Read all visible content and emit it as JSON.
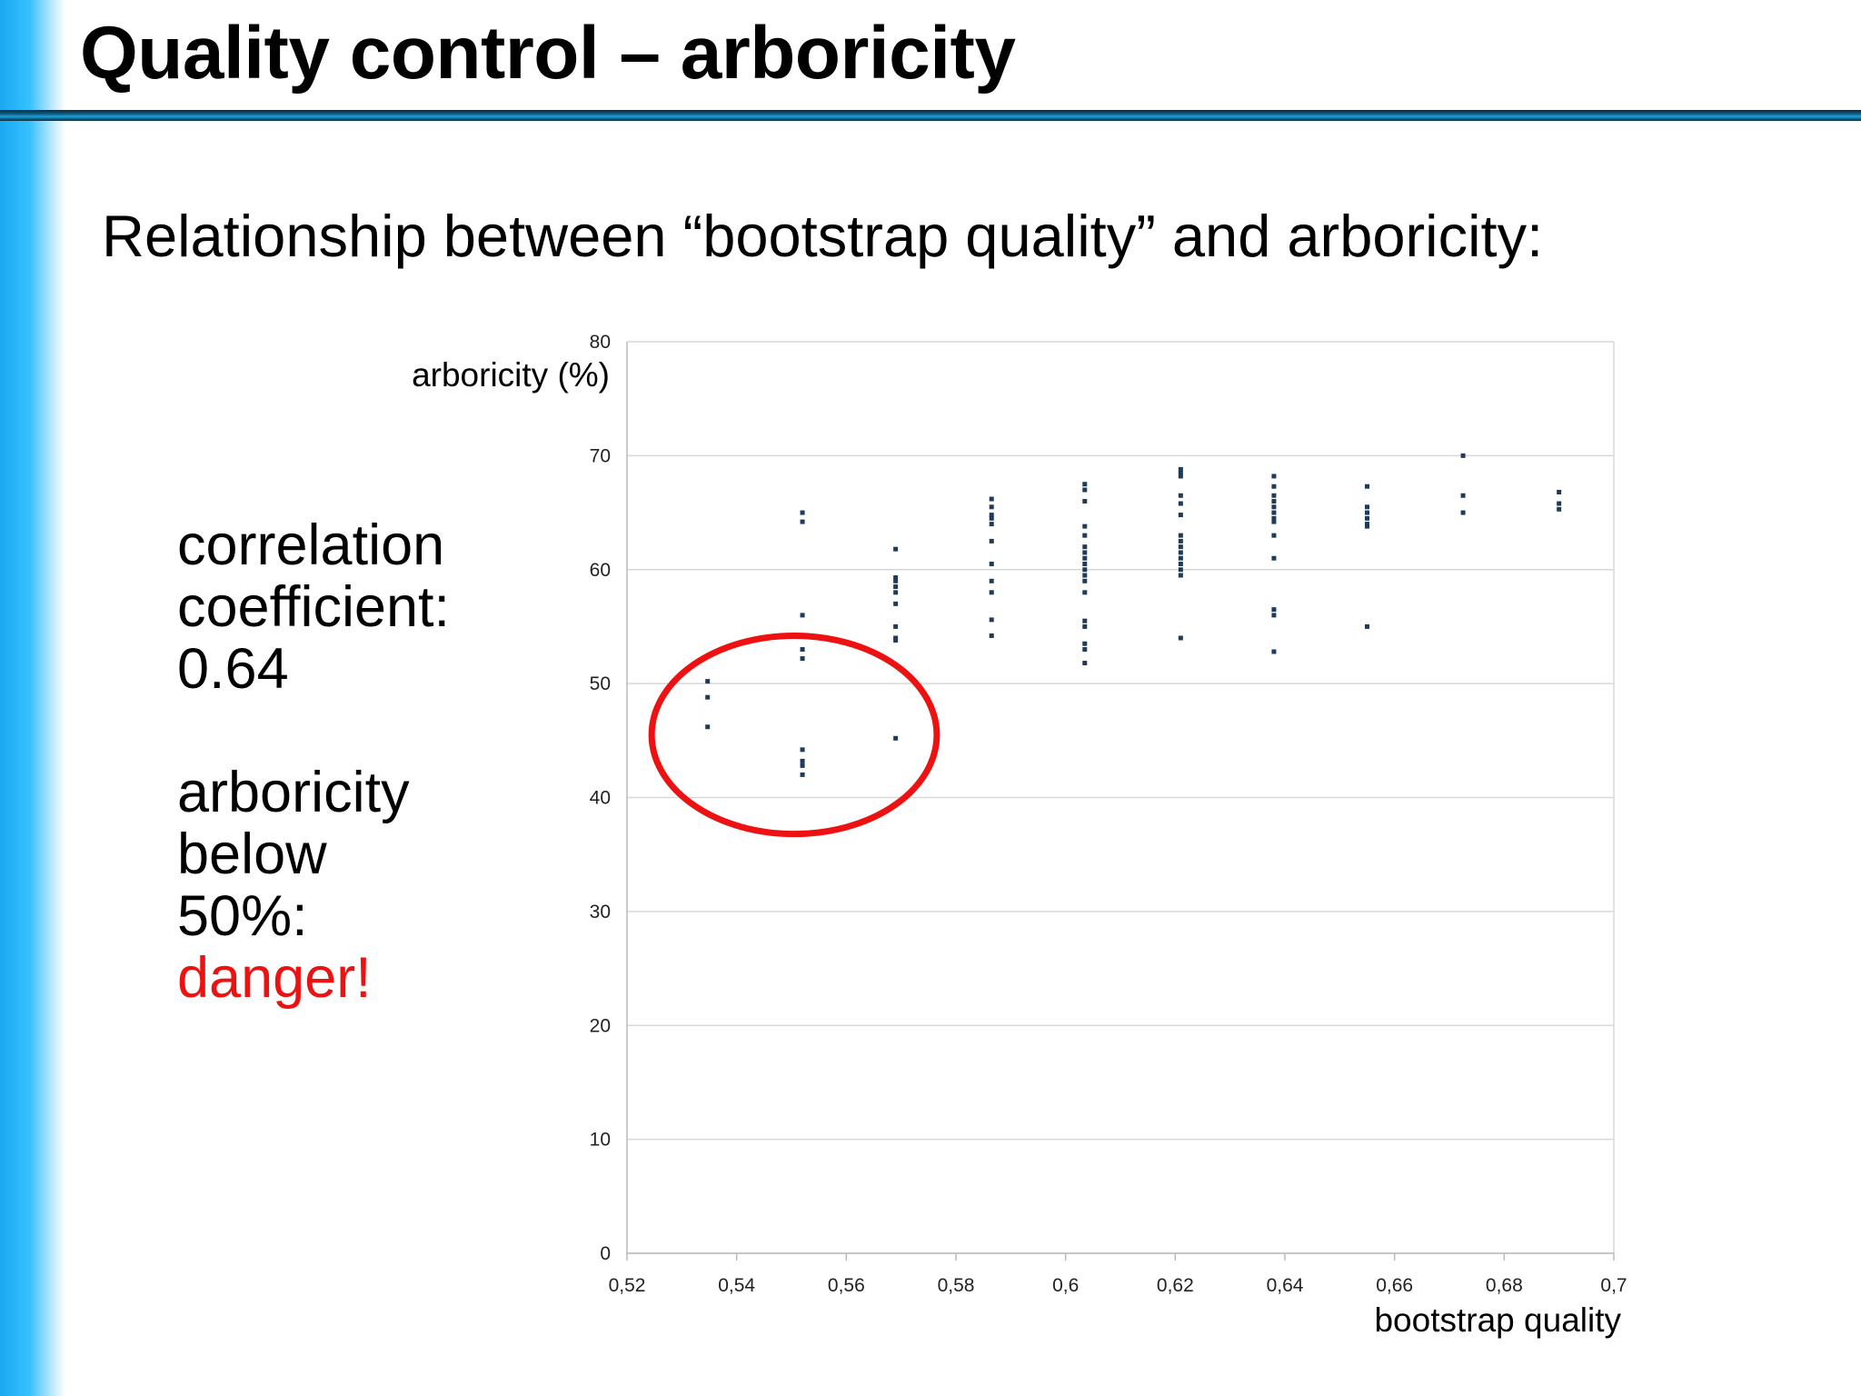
{
  "slide": {
    "title": "Quality control – arboricity",
    "subtitle": "Relationship between “bootstrap quality” and arboricity:",
    "side_text": [
      "correlation",
      "coefficient:",
      "0.64",
      "",
      "arboricity",
      "below",
      "50%:"
    ],
    "danger_text": "danger!",
    "accent_color": "#ee1111"
  },
  "chart_data": {
    "type": "scatter",
    "title": "",
    "xlabel": "bootstrap quality",
    "ylabel": "arboricity (%)",
    "xlim": [
      0.52,
      0.7
    ],
    "ylim": [
      0,
      80
    ],
    "grid": true,
    "legend": "none",
    "x_ticks": [
      "0,52",
      "0,54",
      "0,56",
      "0,58",
      "0,6",
      "0,62",
      "0,64",
      "0,66",
      "0,68",
      "0,7"
    ],
    "x_tick_values": [
      0.52,
      0.54,
      0.56,
      0.58,
      0.6,
      0.62,
      0.64,
      0.66,
      0.68,
      0.7
    ],
    "y_ticks": [
      "0",
      "10",
      "20",
      "30",
      "40",
      "50",
      "60",
      "70",
      "80"
    ],
    "y_tick_values": [
      0,
      10,
      20,
      30,
      40,
      50,
      60,
      70,
      80
    ],
    "marker_color": "#1f3b5a",
    "annotation": {
      "type": "ellipse",
      "color": "#ee1111",
      "center": [
        0.5505,
        45.5
      ],
      "radius_x": 0.026,
      "radius_y": 8.7
    },
    "groups": [
      {
        "x": 0.5347,
        "y": [
          50.2,
          48.8,
          46.2
        ]
      },
      {
        "x": 0.552,
        "y": [
          65,
          64.2,
          56,
          53,
          52.2,
          44.2,
          43.2,
          42.8,
          42
        ]
      },
      {
        "x": 0.569,
        "y": [
          61.8,
          59.3,
          59,
          58.5,
          58,
          57,
          55,
          54,
          53.8,
          45.2
        ]
      },
      {
        "x": 0.5865,
        "y": [
          66.2,
          65.5,
          64.8,
          64.5,
          64,
          62.5,
          60.5,
          59,
          58,
          55.6,
          54.2
        ]
      },
      {
        "x": 0.6035,
        "y": [
          67.5,
          67,
          66,
          63.8,
          63,
          62,
          61.5,
          61,
          60.5,
          60,
          59.5,
          59,
          58,
          55.5,
          55,
          53.5,
          53,
          51.8
        ]
      },
      {
        "x": 0.621,
        "y": [
          68.8,
          68.5,
          68.2,
          66.5,
          65.8,
          64.8,
          63,
          62.5,
          62,
          61.5,
          61,
          60.5,
          60,
          59.5,
          54
        ]
      },
      {
        "x": 0.638,
        "y": [
          68.2,
          67.3,
          66.5,
          66,
          65.5,
          65,
          64.5,
          64.2,
          63,
          61,
          56.5,
          56,
          52.8
        ]
      },
      {
        "x": 0.655,
        "y": [
          67.3,
          65.5,
          65,
          64.5,
          64,
          63.8,
          55
        ]
      },
      {
        "x": 0.6725,
        "y": [
          70,
          66.5,
          65
        ]
      },
      {
        "x": 0.69,
        "y": [
          66.8,
          65.8,
          65.3
        ]
      }
    ]
  }
}
